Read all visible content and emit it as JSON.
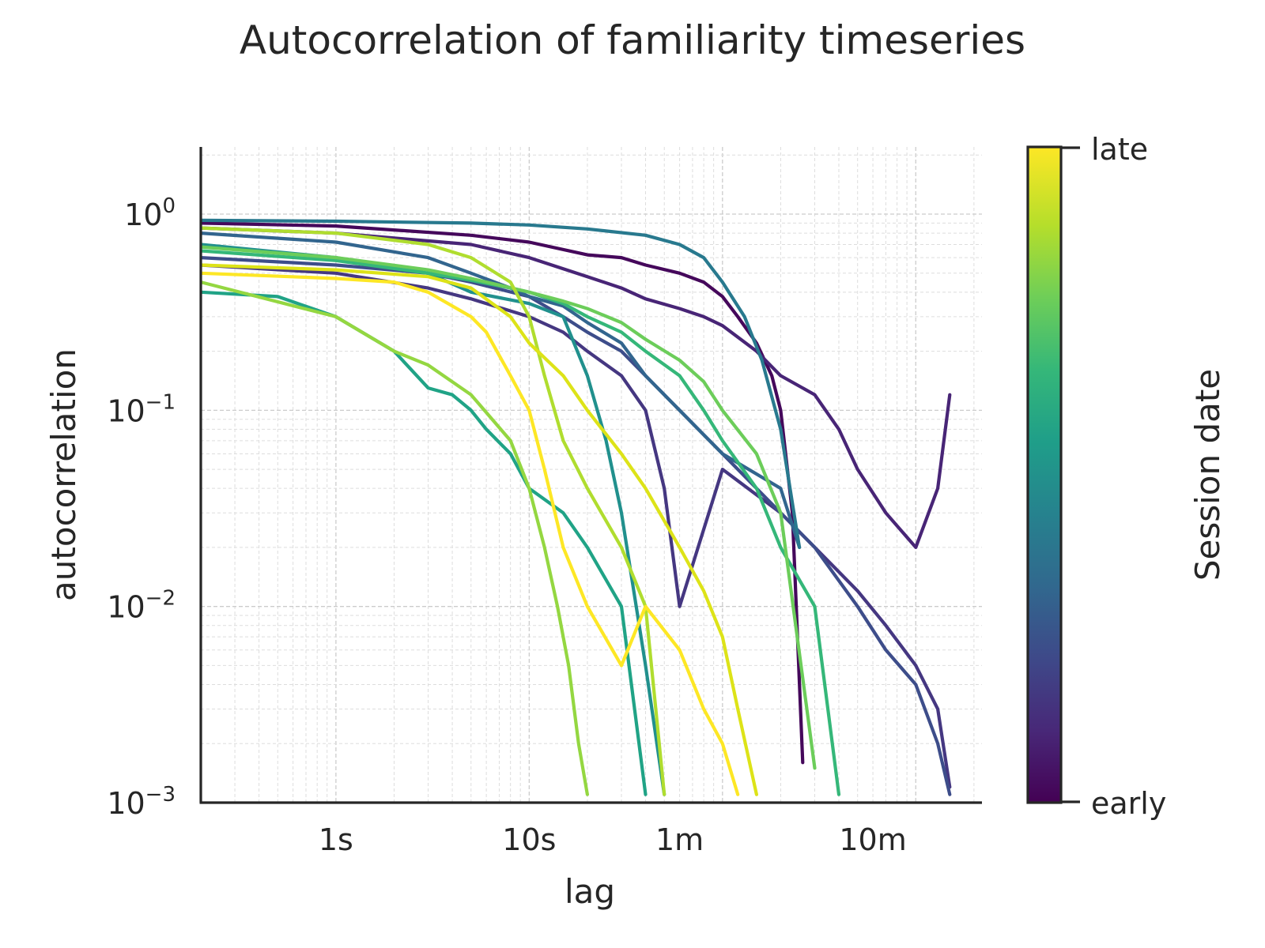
{
  "chart_data": {
    "type": "line",
    "title": "Autocorrelation of familiarity timeseries",
    "xlabel": "lag",
    "ylabel": "autocorrelation",
    "x_scale": "log",
    "y_scale": "log",
    "x_unit": "seconds",
    "xlim": [
      0.2,
      2200
    ],
    "ylim": [
      0.001,
      2.2
    ],
    "x_ticks": [
      {
        "value": 1,
        "label": "1s"
      },
      {
        "value": 10,
        "label": "10s"
      },
      {
        "value": 60,
        "label": "1m"
      },
      {
        "value": 600,
        "label": "10m"
      }
    ],
    "y_ticks": [
      {
        "value": 1,
        "base": "10",
        "exp": "0"
      },
      {
        "value": 0.1,
        "base": "10",
        "exp": "−1"
      },
      {
        "value": 0.01,
        "base": "10",
        "exp": "−2"
      },
      {
        "value": 0.001,
        "base": "10",
        "exp": "−3"
      }
    ],
    "grid": true,
    "colorbar": {
      "label": "Session date",
      "min_label": "early",
      "max_label": "late",
      "colormap": "viridis",
      "colors": [
        "#440154",
        "#482878",
        "#3e4989",
        "#31688e",
        "#26828e",
        "#1f9e89",
        "#35b779",
        "#6ece58",
        "#b5de2b",
        "#fde725"
      ]
    },
    "series": [
      {
        "t": 0.02,
        "color": "#45085b",
        "x": [
          0.2,
          1,
          5,
          10,
          20,
          30,
          40,
          60,
          80,
          100,
          120,
          150,
          180,
          200,
          230,
          260
        ],
        "y": [
          0.9,
          0.87,
          0.78,
          0.72,
          0.62,
          0.6,
          0.55,
          0.5,
          0.45,
          0.38,
          0.3,
          0.22,
          0.15,
          0.1,
          0.03,
          0.0016
        ]
      },
      {
        "t": 0.1,
        "color": "#482576",
        "x": [
          0.2,
          1,
          5,
          10,
          20,
          30,
          40,
          60,
          80,
          100,
          150,
          200,
          300,
          400,
          500,
          700,
          1000,
          1300,
          1500
        ],
        "y": [
          0.85,
          0.8,
          0.7,
          0.6,
          0.48,
          0.42,
          0.37,
          0.33,
          0.3,
          0.27,
          0.2,
          0.15,
          0.12,
          0.08,
          0.05,
          0.03,
          0.02,
          0.04,
          0.12
        ]
      },
      {
        "t": 0.18,
        "color": "#453781",
        "x": [
          0.2,
          1,
          3,
          5,
          10,
          15,
          20,
          30,
          40,
          50,
          60,
          100,
          200,
          300,
          500,
          700,
          1000,
          1300,
          1500
        ],
        "y": [
          0.55,
          0.5,
          0.42,
          0.37,
          0.3,
          0.25,
          0.2,
          0.15,
          0.1,
          0.04,
          0.01,
          0.05,
          0.03,
          0.02,
          0.012,
          0.008,
          0.005,
          0.003,
          0.0012
        ]
      },
      {
        "t": 0.28,
        "color": "#3d4d8a",
        "x": [
          0.2,
          1,
          3,
          5,
          10,
          15,
          20,
          30,
          40,
          60,
          100,
          200,
          300,
          500,
          700,
          1000,
          1300,
          1500
        ],
        "y": [
          0.6,
          0.55,
          0.5,
          0.45,
          0.38,
          0.3,
          0.25,
          0.2,
          0.15,
          0.1,
          0.06,
          0.03,
          0.02,
          0.01,
          0.006,
          0.004,
          0.002,
          0.0011
        ]
      },
      {
        "t": 0.38,
        "color": "#32658e",
        "x": [
          0.2,
          1,
          3,
          5,
          8,
          10,
          15,
          20,
          30,
          40,
          60,
          100,
          200,
          250
        ],
        "y": [
          0.8,
          0.72,
          0.6,
          0.5,
          0.42,
          0.38,
          0.34,
          0.28,
          0.22,
          0.15,
          0.1,
          0.06,
          0.04,
          0.02
        ]
      },
      {
        "t": 0.48,
        "color": "#28798e",
        "x": [
          0.2,
          1,
          5,
          10,
          20,
          40,
          60,
          80,
          100,
          130,
          160,
          200,
          250
        ],
        "y": [
          0.93,
          0.92,
          0.9,
          0.88,
          0.84,
          0.78,
          0.7,
          0.6,
          0.45,
          0.3,
          0.18,
          0.08,
          0.02
        ]
      },
      {
        "t": 0.56,
        "color": "#21908d",
        "x": [
          0.2,
          1,
          3,
          5,
          10,
          15,
          20,
          25,
          30,
          40,
          50
        ],
        "y": [
          0.7,
          0.6,
          0.5,
          0.4,
          0.35,
          0.3,
          0.15,
          0.07,
          0.03,
          0.005,
          0.0011
        ]
      },
      {
        "t": 0.62,
        "color": "#20a386",
        "x": [
          0.2,
          0.5,
          1,
          2,
          3,
          4,
          5,
          6,
          8,
          10,
          15,
          20,
          30,
          40
        ],
        "y": [
          0.4,
          0.38,
          0.3,
          0.2,
          0.13,
          0.12,
          0.1,
          0.08,
          0.06,
          0.04,
          0.03,
          0.02,
          0.01,
          0.0011
        ]
      },
      {
        "t": 0.7,
        "color": "#35b779",
        "x": [
          0.2,
          1,
          3,
          5,
          8,
          10,
          15,
          20,
          30,
          40,
          60,
          80,
          100,
          150,
          200,
          300,
          400
        ],
        "y": [
          0.65,
          0.58,
          0.5,
          0.46,
          0.42,
          0.4,
          0.35,
          0.3,
          0.25,
          0.2,
          0.15,
          0.1,
          0.07,
          0.04,
          0.02,
          0.01,
          0.0011
        ]
      },
      {
        "t": 0.8,
        "color": "#6ccd5a",
        "x": [
          0.2,
          1,
          3,
          5,
          10,
          15,
          20,
          30,
          40,
          60,
          80,
          100,
          150,
          200,
          300
        ],
        "y": [
          0.68,
          0.6,
          0.52,
          0.47,
          0.4,
          0.36,
          0.33,
          0.28,
          0.23,
          0.18,
          0.14,
          0.1,
          0.06,
          0.03,
          0.0015
        ]
      },
      {
        "t": 0.86,
        "color": "#94d741",
        "x": [
          0.2,
          1,
          2,
          3,
          5,
          8,
          10,
          12,
          14,
          16,
          18,
          20
        ],
        "y": [
          0.45,
          0.3,
          0.2,
          0.17,
          0.12,
          0.07,
          0.04,
          0.02,
          0.01,
          0.005,
          0.002,
          0.0011
        ]
      },
      {
        "t": 0.9,
        "color": "#b0dd2f",
        "x": [
          0.2,
          1,
          3,
          5,
          8,
          10,
          12,
          15,
          20,
          30,
          40,
          50
        ],
        "y": [
          0.85,
          0.8,
          0.7,
          0.6,
          0.45,
          0.3,
          0.15,
          0.07,
          0.04,
          0.02,
          0.01,
          0.0011
        ]
      },
      {
        "t": 0.95,
        "color": "#dde318",
        "x": [
          0.2,
          1,
          3,
          5,
          8,
          10,
          15,
          20,
          30,
          40,
          60,
          80,
          100,
          120,
          150
        ],
        "y": [
          0.55,
          0.52,
          0.48,
          0.42,
          0.3,
          0.22,
          0.15,
          0.1,
          0.06,
          0.04,
          0.02,
          0.012,
          0.007,
          0.003,
          0.0011
        ]
      },
      {
        "t": 1.0,
        "color": "#fde725",
        "x": [
          0.2,
          1,
          2,
          3,
          5,
          6,
          8,
          10,
          12,
          15,
          20,
          30,
          40,
          60,
          80,
          100,
          120
        ],
        "y": [
          0.5,
          0.47,
          0.45,
          0.4,
          0.3,
          0.25,
          0.15,
          0.1,
          0.05,
          0.02,
          0.01,
          0.005,
          0.01,
          0.006,
          0.003,
          0.002,
          0.0011
        ]
      }
    ]
  }
}
